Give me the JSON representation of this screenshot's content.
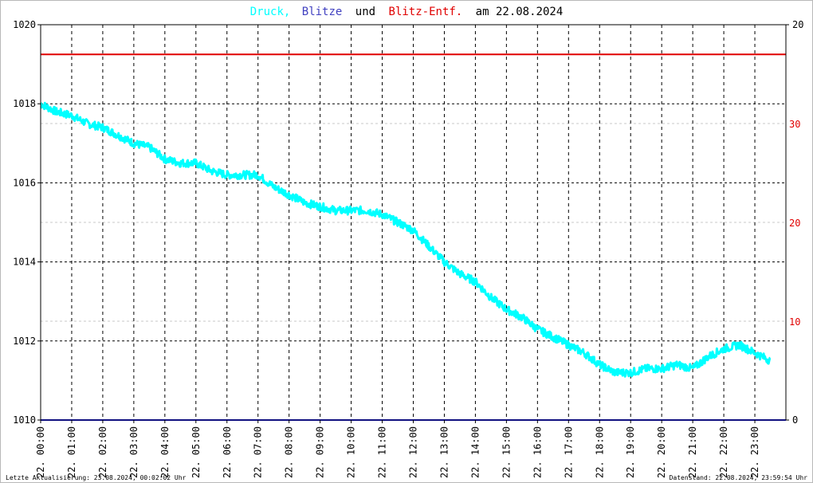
{
  "title": {
    "part1": "Druck,",
    "part2": "Blitze",
    "part3": "und",
    "part4": "Blitz-Entf.",
    "part5": "am 22.08.2024"
  },
  "footer": {
    "left": "Letzte Aktualisierung: 23.08.2024, 00:02:02 Uhr",
    "right": "Datenstand: 22.08.2024, 23:59:54 Uhr"
  },
  "colors": {
    "druck": "#00ffff",
    "blitze": "#4040c0",
    "blitz_entf": "#e00000",
    "grid": "#000000",
    "minor_grid": "#c8c8c8",
    "axis": "#000000"
  },
  "chart_data": {
    "type": "line",
    "x_labels": [
      "22. 00:00",
      "22. 01:00",
      "22. 02:00",
      "22. 03:00",
      "22. 04:00",
      "22. 05:00",
      "22. 06:00",
      "22. 07:00",
      "22. 08:00",
      "22. 09:00",
      "22. 10:00",
      "22. 11:00",
      "22. 12:00",
      "22. 13:00",
      "22. 14:00",
      "22. 15:00",
      "22. 16:00",
      "22. 17:00",
      "22. 18:00",
      "22. 19:00",
      "22. 20:00",
      "22. 21:00",
      "22. 22:00",
      "22. 23:00"
    ],
    "x_hours": [
      0,
      1,
      2,
      3,
      4,
      5,
      6,
      7,
      8,
      9,
      10,
      11,
      12,
      13,
      14,
      15,
      16,
      17,
      18,
      19,
      20,
      21,
      22,
      23
    ],
    "x_range": [
      0,
      24
    ],
    "y_left": {
      "range": [
        1010,
        1020
      ],
      "ticks": [
        "1010",
        "1012",
        "1014",
        "1016",
        "1018",
        "1020"
      ],
      "tick_values": [
        1010,
        1012,
        1014,
        1016,
        1018,
        1020
      ]
    },
    "y_right_black": {
      "range": [
        0,
        20
      ],
      "ticks": [
        "0",
        "20"
      ],
      "tick_values": [
        0,
        20
      ]
    },
    "y_right_red": {
      "range": [
        0,
        40
      ],
      "ticks": [
        "10",
        "20",
        "30"
      ],
      "tick_values": [
        10,
        20,
        30
      ]
    },
    "series": [
      {
        "name": "Druck",
        "axis": "left",
        "hours": [
          0,
          0.5,
          1,
          1.5,
          2,
          2.5,
          3,
          3.5,
          4,
          4.5,
          5,
          5.5,
          6,
          6.5,
          7,
          7.5,
          8,
          8.5,
          9,
          9.5,
          10,
          10.5,
          11,
          11.5,
          12,
          12.5,
          13,
          13.5,
          14,
          14.5,
          15,
          15.5,
          16,
          16.5,
          17,
          17.5,
          18,
          18.5,
          19,
          19.5,
          20,
          20.5,
          21,
          21.5,
          22,
          22.5,
          23,
          23.5
        ],
        "values": [
          1018.0,
          1017.8,
          1017.7,
          1017.5,
          1017.4,
          1017.2,
          1017.0,
          1016.9,
          1016.6,
          1016.5,
          1016.5,
          1016.3,
          1016.2,
          1016.2,
          1016.2,
          1015.9,
          1015.7,
          1015.5,
          1015.4,
          1015.3,
          1015.3,
          1015.3,
          1015.2,
          1015.0,
          1014.8,
          1014.4,
          1014.0,
          1013.7,
          1013.5,
          1013.1,
          1012.8,
          1012.6,
          1012.3,
          1012.1,
          1011.9,
          1011.7,
          1011.4,
          1011.2,
          1011.2,
          1011.3,
          1011.3,
          1011.4,
          1011.3,
          1011.6,
          1011.8,
          1011.9,
          1011.7,
          1011.5
        ]
      },
      {
        "name": "Blitze",
        "axis": "right_black",
        "constant": 0
      },
      {
        "name": "Blitz-Entf.",
        "axis": "right_red",
        "constant": 37
      }
    ]
  }
}
